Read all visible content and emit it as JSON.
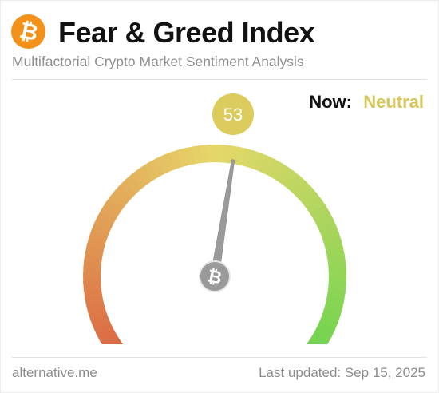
{
  "header": {
    "logo_icon": "bitcoin-icon",
    "title": "Fear & Greed Index",
    "subtitle": "Multifactorial Crypto Market Sentiment Analysis"
  },
  "status": {
    "now_label": "Now:",
    "now_value": "Neutral",
    "now_color": "#d6c65b"
  },
  "gauge": {
    "value": 53,
    "min": 0,
    "max": 100,
    "bubble_color": "#dccb5d",
    "colors": {
      "fear": "#d9533c",
      "neutral": "#e6d76a",
      "greed": "#5bd34a"
    },
    "hub_icon": "bitcoin-icon"
  },
  "footer": {
    "source": "alternative.me",
    "updated": "Last updated: Sep 15, 2025"
  }
}
